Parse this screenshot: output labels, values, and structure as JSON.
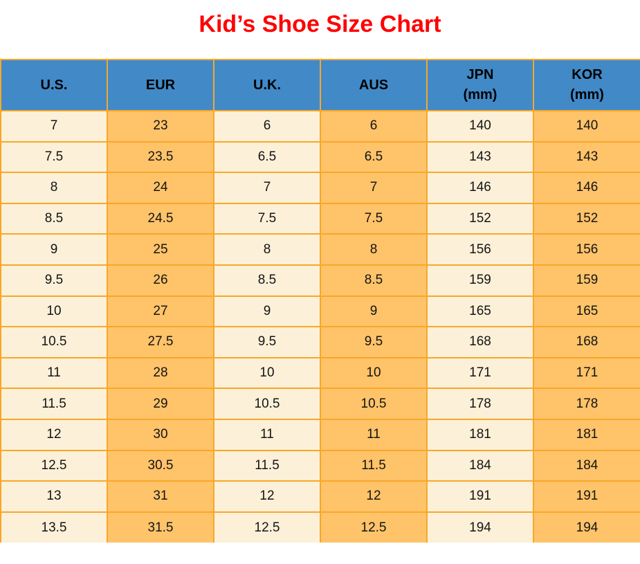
{
  "title": "Kid’s Shoe Size Chart",
  "colors": {
    "title_color": "#FF0000",
    "header_bg": "#4289C7",
    "cell_orange": "#FFC369",
    "cell_cream": "#FCF0D8",
    "border_color": "#F7A828",
    "text_color": "#141414"
  },
  "chart_data": {
    "type": "table",
    "title": "Kid’s Shoe Size Chart",
    "columns": [
      {
        "key": "us",
        "label": "U.S.",
        "unit": ""
      },
      {
        "key": "eur",
        "label": "EUR",
        "unit": ""
      },
      {
        "key": "uk",
        "label": "U.K.",
        "unit": ""
      },
      {
        "key": "aus",
        "label": "AUS",
        "unit": ""
      },
      {
        "key": "jpn",
        "label": "JPN",
        "unit": "(mm)"
      },
      {
        "key": "kor",
        "label": "KOR",
        "unit": "(mm)"
      }
    ],
    "rows": [
      [
        "7",
        "23",
        "6",
        "6",
        "140",
        "140"
      ],
      [
        "7.5",
        "23.5",
        "6.5",
        "6.5",
        "143",
        "143"
      ],
      [
        "8",
        "24",
        "7",
        "7",
        "146",
        "146"
      ],
      [
        "8.5",
        "24.5",
        "7.5",
        "7.5",
        "152",
        "152"
      ],
      [
        "9",
        "25",
        "8",
        "8",
        "156",
        "156"
      ],
      [
        "9.5",
        "26",
        "8.5",
        "8.5",
        "159",
        "159"
      ],
      [
        "10",
        "27",
        "9",
        "9",
        "165",
        "165"
      ],
      [
        "10.5",
        "27.5",
        "9.5",
        "9.5",
        "168",
        "168"
      ],
      [
        "11",
        "28",
        "10",
        "10",
        "171",
        "171"
      ],
      [
        "11.5",
        "29",
        "10.5",
        "10.5",
        "178",
        "178"
      ],
      [
        "12",
        "30",
        "11",
        "11",
        "181",
        "181"
      ],
      [
        "12.5",
        "30.5",
        "11.5",
        "11.5",
        "184",
        "184"
      ],
      [
        "13",
        "31",
        "12",
        "12",
        "191",
        "191"
      ],
      [
        "13.5",
        "31.5",
        "12.5",
        "12.5",
        "194",
        "194"
      ]
    ]
  }
}
